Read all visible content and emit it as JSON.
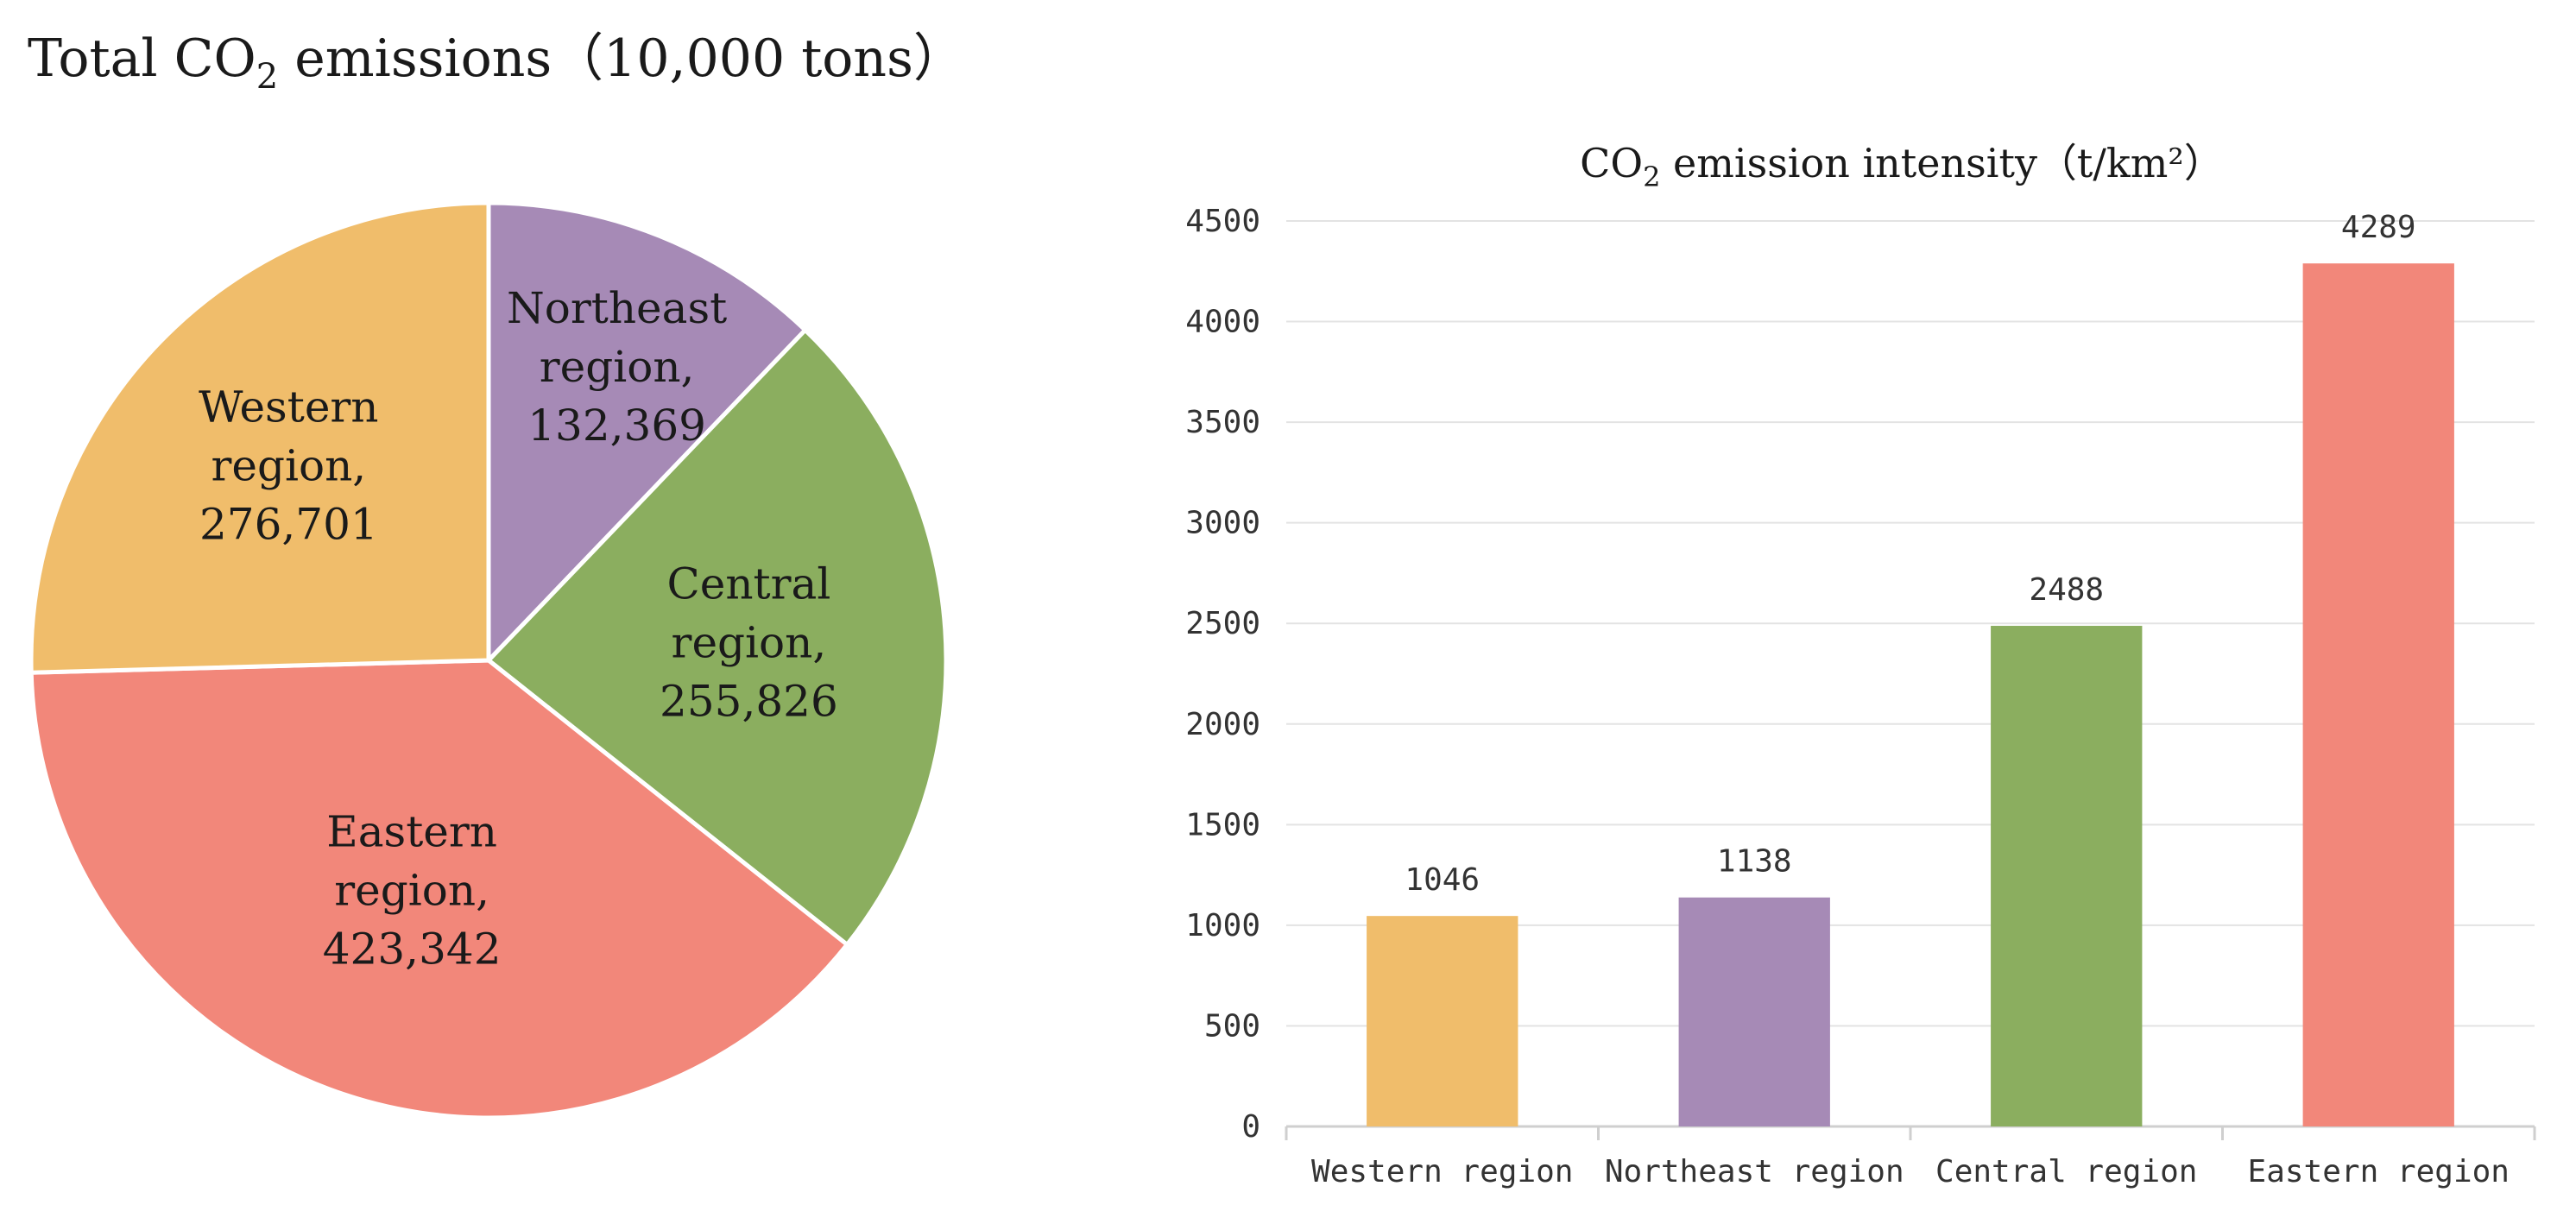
{
  "chart_data": [
    {
      "type": "pie",
      "title": {
        "prefix": "Total CO",
        "sub": "2",
        "suffix": " emissions（10,000 tons）"
      },
      "slices": [
        {
          "name": "Northeast region",
          "line1": "Northeast",
          "line2": "region,",
          "value": 132369,
          "value_label": "132,369",
          "color": "#A68AB6"
        },
        {
          "name": "Central region",
          "line1": "Central",
          "line2": "region,",
          "value": 255826,
          "value_label": "255,826",
          "color": "#8BAE5F"
        },
        {
          "name": "Eastern region",
          "line1": "Eastern",
          "line2": "region,",
          "value": 423342,
          "value_label": "423,342",
          "color": "#F2877A"
        },
        {
          "name": "Western region",
          "line1": "Western",
          "line2": "region,",
          "value": 276701,
          "value_label": "276,701",
          "color": "#F0BD6B"
        }
      ]
    },
    {
      "type": "bar",
      "title": {
        "prefix": "CO",
        "sub": "2",
        "suffix": " emission intensity（t/km²）"
      },
      "categories": [
        "Western region",
        "Northeast region",
        "Central region",
        "Eastern region"
      ],
      "values": [
        1046,
        1138,
        2488,
        4289
      ],
      "colors": [
        "#F0BD6B",
        "#A68AB6",
        "#8BAE5F",
        "#F2877A"
      ],
      "ylim": [
        0,
        4500
      ],
      "yticks": [
        0,
        500,
        1000,
        1500,
        2000,
        2500,
        3000,
        3500,
        4000,
        4500
      ],
      "grid": true,
      "xlabel": "",
      "ylabel": ""
    }
  ]
}
